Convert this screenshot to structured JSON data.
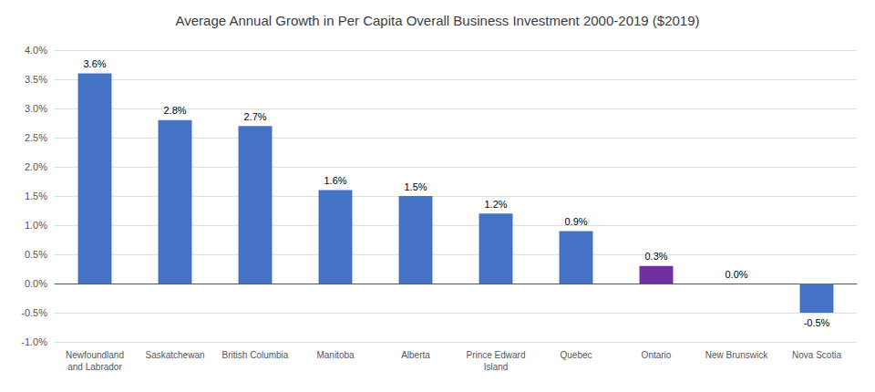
{
  "chart_data": {
    "type": "bar",
    "title": "Average Annual Growth in Per Capita Overall Business Investment 2000-2019 ($2019)",
    "categories": [
      "Newfoundland\nand Labrador",
      "Saskatchewan",
      "British Columbia",
      "Manitoba",
      "Alberta",
      "Prince Edward\nIsland",
      "Quebec",
      "Ontario",
      "New Brunswick",
      "Nova Scotia"
    ],
    "values": [
      3.6,
      2.8,
      2.7,
      1.6,
      1.5,
      1.2,
      0.9,
      0.3,
      0.0,
      -0.5
    ],
    "value_labels": [
      "3.6%",
      "2.8%",
      "2.7%",
      "1.6%",
      "1.5%",
      "1.2%",
      "0.9%",
      "0.3%",
      "0.0%",
      "-0.5%"
    ],
    "colors": [
      "#4472C4",
      "#4472C4",
      "#4472C4",
      "#4472C4",
      "#4472C4",
      "#4472C4",
      "#4472C4",
      "#7030A0",
      "#4472C4",
      "#4472C4"
    ],
    "data_labels": true,
    "ylim": [
      -1.0,
      4.0
    ],
    "yticks": [
      {
        "value": -1.0,
        "label": "-1.0%"
      },
      {
        "value": -0.5,
        "label": "-0.5%"
      },
      {
        "value": 0.0,
        "label": "0.0%"
      },
      {
        "value": 0.5,
        "label": "0.5%"
      },
      {
        "value": 1.0,
        "label": "1.0%"
      },
      {
        "value": 1.5,
        "label": "1.5%"
      },
      {
        "value": 2.0,
        "label": "2.0%"
      },
      {
        "value": 2.5,
        "label": "2.5%"
      },
      {
        "value": 3.0,
        "label": "3.0%"
      },
      {
        "value": 3.5,
        "label": "3.5%"
      },
      {
        "value": 4.0,
        "label": "4.0%"
      }
    ],
    "grid": true
  }
}
